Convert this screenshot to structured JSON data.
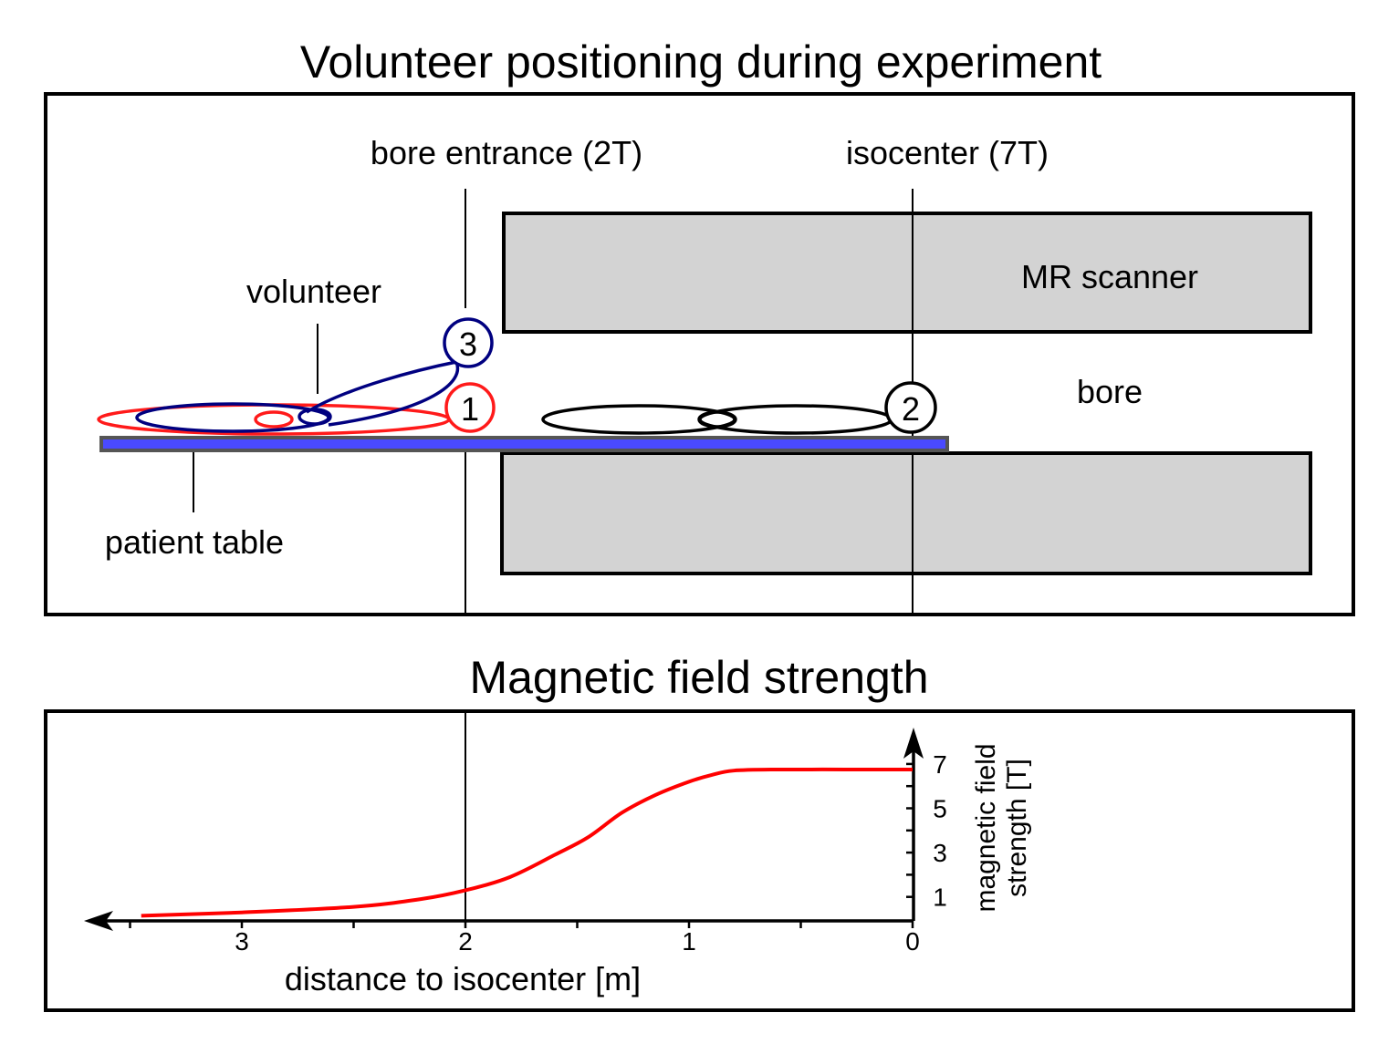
{
  "top_panel": {
    "title": "Volunteer positioning during experiment",
    "bore_entrance_label": "bore entrance (2T)",
    "isocenter_label": "isocenter (7T)",
    "scanner_label": "MR scanner",
    "bore_label": "bore",
    "volunteer_label": "volunteer",
    "patient_table_label": "patient table",
    "positions": [
      {
        "number": "1",
        "color": "#ff1a1a"
      },
      {
        "number": "2",
        "color": "#000000"
      },
      {
        "number": "3",
        "color": "#000080"
      }
    ],
    "table_color": "#4a4aff",
    "scanner_color": "#d3d3d3"
  },
  "chart_data": {
    "type": "line",
    "title": "Magnetic field strength",
    "xlabel": "distance to isocenter [m]",
    "ylabel": "magnetic field strength [T]",
    "ylabel_lines": [
      "magnetic field",
      "strength [T]"
    ],
    "xlim": [
      3.6,
      0
    ],
    "ylim": [
      0,
      7.5
    ],
    "x_ticks": [
      "3",
      "2",
      "1",
      "0"
    ],
    "y_ticks": [
      "1",
      "3",
      "5",
      "7"
    ],
    "grid": false,
    "series": [
      {
        "name": "field",
        "color": "#ff0000",
        "x": [
          3.45,
          3.0,
          2.5,
          2.2,
          2.0,
          1.8,
          1.6,
          1.45,
          1.3,
          1.15,
          1.0,
          0.9,
          0.8,
          0.6,
          0.3,
          0.0
        ],
        "y": [
          0.15,
          0.3,
          0.55,
          0.9,
          1.3,
          1.9,
          2.9,
          3.7,
          4.8,
          5.6,
          6.2,
          6.5,
          6.7,
          6.75,
          6.75,
          6.75
        ]
      }
    ]
  }
}
